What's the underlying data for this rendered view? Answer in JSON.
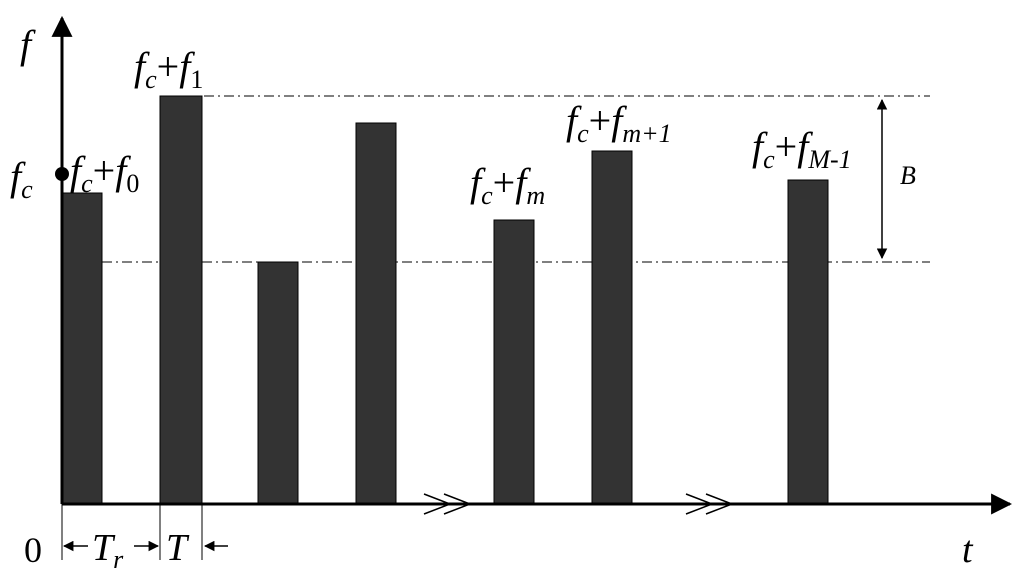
{
  "axes": {
    "y_label": "f",
    "x_label": "t",
    "origin": "0"
  },
  "bars": [
    {
      "label_base": "f",
      "label_sub": "c",
      "label_op": "+",
      "label_var": "f",
      "label_index": "0"
    },
    {
      "label_base": "f",
      "label_sub": "c",
      "label_op": "+",
      "label_var": "f",
      "label_index": "1"
    },
    {
      "label_base": "",
      "label_sub": "",
      "label_op": "",
      "label_var": "",
      "label_index": ""
    },
    {
      "label_base": "",
      "label_sub": "",
      "label_op": "",
      "label_var": "",
      "label_index": ""
    },
    {
      "label_base": "f",
      "label_sub": "c",
      "label_op": "+",
      "label_var": "f",
      "label_index": "m"
    },
    {
      "label_base": "f",
      "label_sub": "c",
      "label_op": "+",
      "label_var": "f",
      "label_index": "m+1"
    },
    {
      "label_base": "f",
      "label_sub": "c",
      "label_op": "+",
      "label_var": "f",
      "label_index": "M-1"
    }
  ],
  "carrier": {
    "base": "f",
    "sub": "c"
  },
  "bandwidth": "B",
  "intervals": {
    "tr_base": "T",
    "tr_sub": "r",
    "t": "T"
  },
  "colors": {
    "bar_fill": "#333333",
    "stroke": "#000000"
  }
}
